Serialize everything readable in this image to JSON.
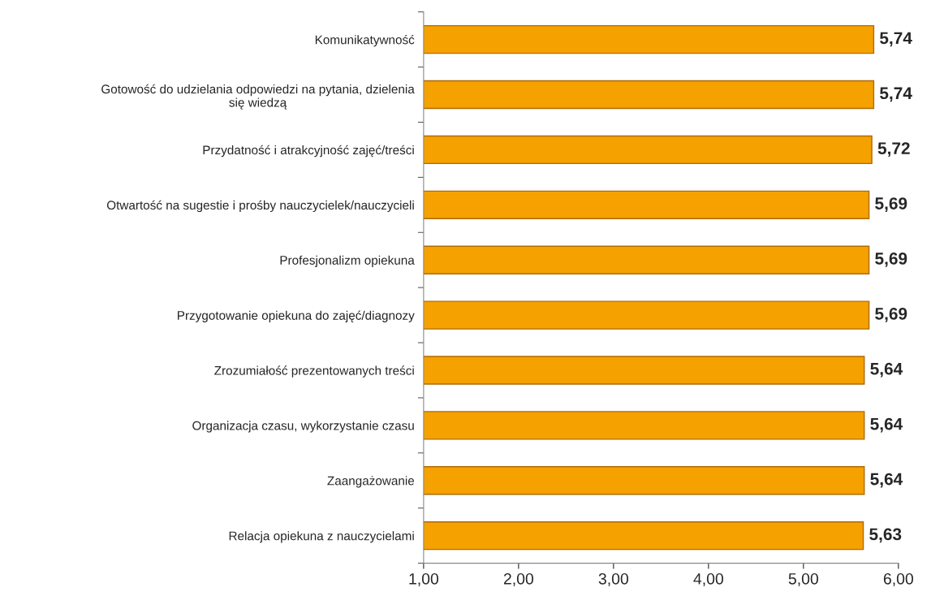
{
  "chart_data": {
    "type": "bar",
    "orientation": "horizontal",
    "categories": [
      "Komunikatywność",
      "Gotowość do udzielania odpowiedzi na pytania, dzielenia się wiedzą",
      "Przydatność i atrakcyjność zajęć/treści",
      "Otwartość na sugestie i prośby nauczycielek/nauczycieli",
      "Profesjonalizm opiekuna",
      "Przygotowanie opiekuna do zajęć/diagnozy",
      "Zrozumiałość prezentowanych treści",
      "Organizacja czasu, wykorzystanie czasu",
      "Zaangażowanie",
      "Relacja opiekuna z nauczycielami"
    ],
    "values": [
      5.74,
      5.74,
      5.72,
      5.69,
      5.69,
      5.69,
      5.64,
      5.64,
      5.64,
      5.63
    ],
    "value_labels": [
      "5,74",
      "5,74",
      "5,72",
      "5,69",
      "5,69",
      "5,69",
      "5,64",
      "5,64",
      "5,64",
      "5,63"
    ],
    "color": "#f5a100",
    "xlim": [
      1,
      6
    ],
    "xticks": [
      {
        "value": 1,
        "label": "1,00"
      },
      {
        "value": 2,
        "label": "2,00"
      },
      {
        "value": 3,
        "label": "3,00"
      },
      {
        "value": 4,
        "label": "4,00"
      },
      {
        "value": 5,
        "label": "5,00"
      },
      {
        "value": 6,
        "label": "6,00"
      }
    ],
    "grid": false,
    "legend": false
  }
}
